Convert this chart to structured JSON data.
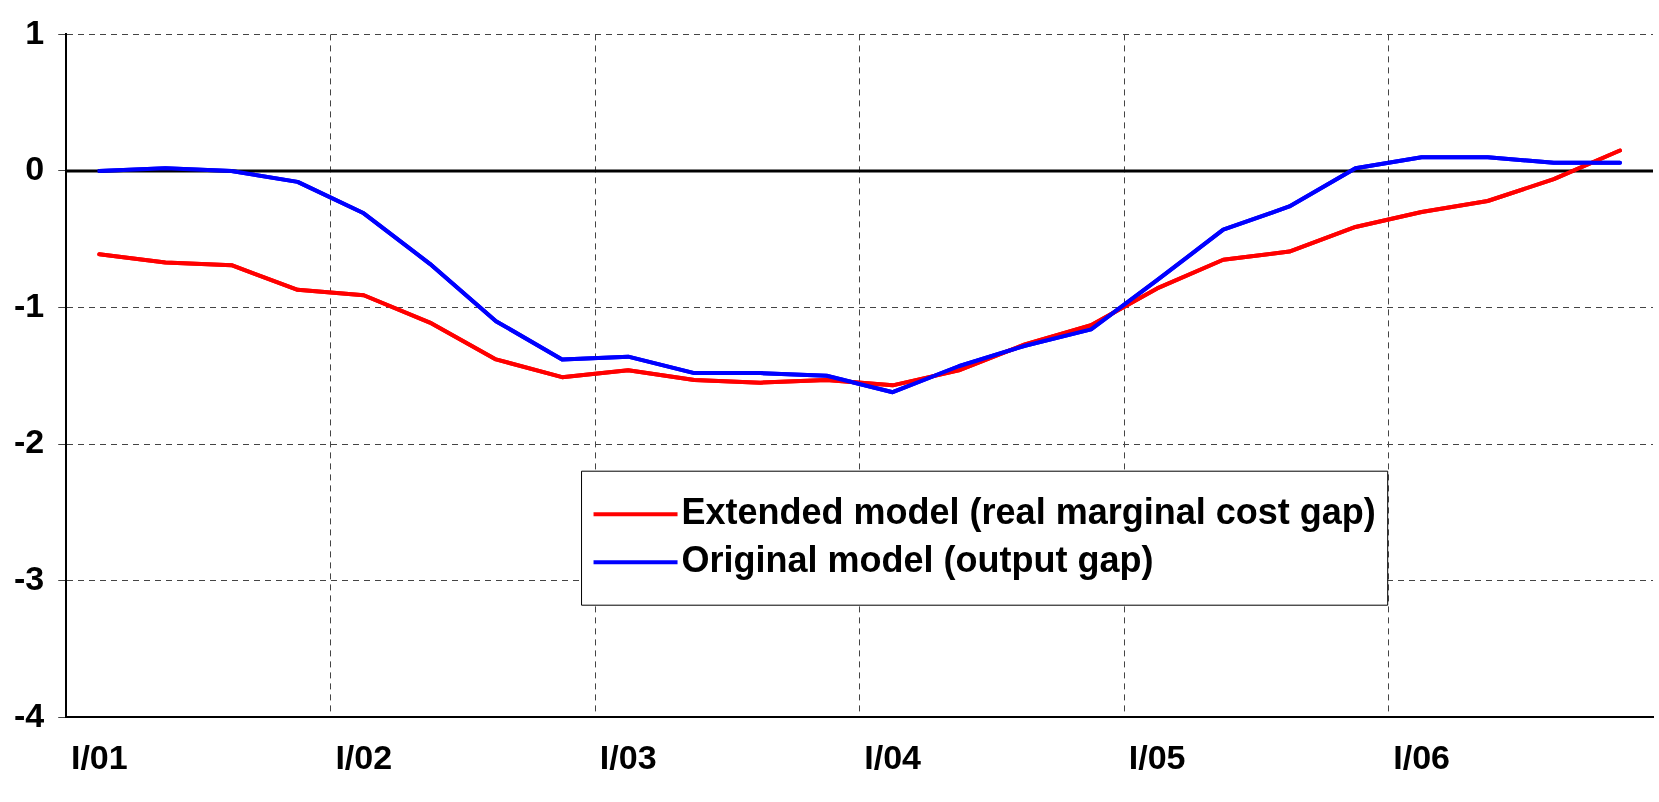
{
  "chart_data": {
    "type": "line",
    "categories": [
      "I/01",
      null,
      null,
      null,
      "I/02",
      null,
      null,
      null,
      "I/03",
      null,
      null,
      null,
      "I/04",
      null,
      null,
      null,
      "I/05",
      null,
      null,
      null,
      "I/06",
      null,
      null,
      null
    ],
    "series": [
      {
        "name": "Extended model (real marginal cost gap)",
        "color": "#ff0000",
        "values": [
          -0.61,
          -0.67,
          -0.69,
          -0.87,
          -0.91,
          -1.11,
          -1.38,
          -1.51,
          -1.46,
          -1.53,
          -1.55,
          -1.53,
          -1.57,
          -1.46,
          -1.27,
          -1.13,
          -0.86,
          -0.65,
          -0.59,
          -0.41,
          -0.3,
          -0.22,
          -0.06,
          0.15
        ]
      },
      {
        "name": "Original model (output gap)",
        "color": "#0000ff",
        "values": [
          0,
          0.02,
          0,
          -0.08,
          -0.31,
          -0.68,
          -1.1,
          -1.38,
          -1.36,
          -1.48,
          -1.48,
          -1.5,
          -1.62,
          -1.43,
          -1.28,
          -1.16,
          -0.8,
          -0.43,
          -0.26,
          0.02,
          0.1,
          0.1,
          0.06,
          0.06
        ]
      }
    ],
    "ylim": [
      -4,
      1
    ],
    "yticks": [
      -4,
      -3,
      -2,
      -1,
      0,
      1
    ],
    "ref_lines": [
      {
        "axis": "y",
        "value": 0,
        "color": "#000000"
      }
    ],
    "grid": true,
    "legend": "bottom",
    "marker": "none",
    "line_style": "solid"
  }
}
